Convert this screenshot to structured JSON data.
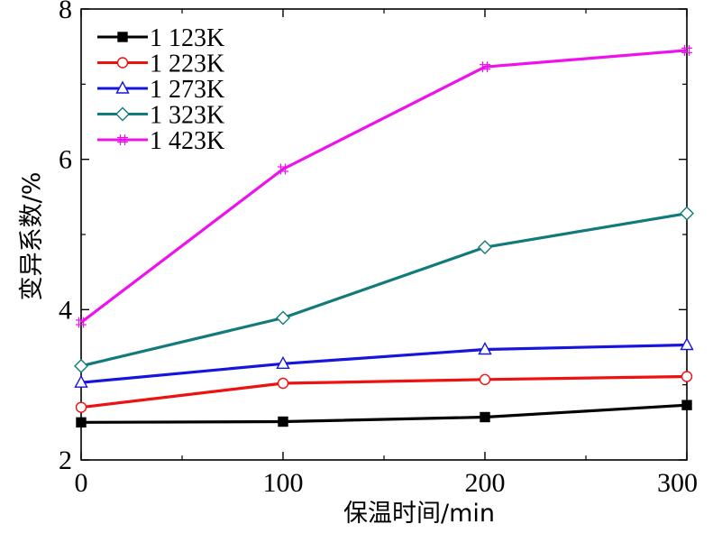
{
  "chart_data": {
    "type": "line",
    "xlabel": "保温时间/min",
    "ylabel": "变异系数/%",
    "x": [
      0,
      100,
      200,
      300
    ],
    "xlim": [
      0,
      300
    ],
    "ylim": [
      2,
      8
    ],
    "xticks": [
      "0",
      "100",
      "200",
      "300"
    ],
    "yticks": [
      "2",
      "4",
      "6",
      "8"
    ],
    "legend_position": "top-left",
    "grid": false,
    "series": [
      {
        "name": "1 123K",
        "color": "#000000",
        "marker": "square-filled",
        "values": [
          2.5,
          2.51,
          2.57,
          2.73
        ]
      },
      {
        "name": "1 223K",
        "color": "#ee1111",
        "marker": "circle-open",
        "values": [
          2.7,
          3.02,
          3.07,
          3.11
        ]
      },
      {
        "name": "1 273K",
        "color": "#1515dd",
        "marker": "triangle-open",
        "values": [
          3.03,
          3.28,
          3.47,
          3.53
        ]
      },
      {
        "name": "1 323K",
        "color": "#137a7a",
        "marker": "diamond-open",
        "values": [
          3.25,
          3.89,
          4.83,
          5.28
        ]
      },
      {
        "name": "1 423K",
        "color": "#ee11ee",
        "marker": "cross-hatch",
        "values": [
          3.83,
          5.87,
          7.23,
          7.45
        ]
      }
    ]
  }
}
